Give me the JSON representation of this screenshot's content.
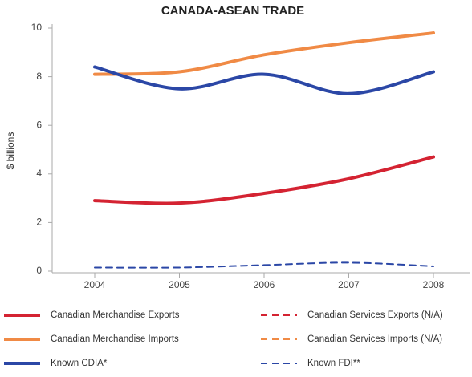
{
  "chart_data": {
    "type": "line",
    "title": "CANADA-ASEAN TRADE",
    "y_label": "$ billions",
    "categories": [
      "2004",
      "2005",
      "2006",
      "2007",
      "2008"
    ],
    "series": [
      {
        "name": "Canadian Merchandise Exports",
        "color": "#d42332",
        "dashed": false,
        "values": [
          2.9,
          2.8,
          3.2,
          3.8,
          4.7
        ]
      },
      {
        "name": "Canadian Merchandise Imports",
        "color": "#f08a45",
        "dashed": false,
        "values": [
          8.1,
          8.2,
          8.9,
          9.4,
          9.8
        ]
      },
      {
        "name": "Known CDIA*",
        "color": "#2b47a6",
        "dashed": false,
        "values": [
          8.4,
          7.5,
          8.1,
          7.3,
          8.2
        ]
      },
      {
        "name": "Canadian Services Exports (N/A)",
        "color": "#d42332",
        "dashed": true,
        "values": [
          null,
          null,
          null,
          null,
          null
        ]
      },
      {
        "name": "Canadian Services Imports (N/A)",
        "color": "#f08a45",
        "dashed": true,
        "values": [
          null,
          null,
          null,
          null,
          null
        ]
      },
      {
        "name": "Known FDI**",
        "color": "#2b47a6",
        "dashed": true,
        "values": [
          0.15,
          0.15,
          0.25,
          0.35,
          0.2
        ]
      }
    ],
    "ylim": [
      0,
      10
    ],
    "yticks": [
      0,
      2,
      4,
      6,
      8,
      10
    ],
    "grid": false
  }
}
